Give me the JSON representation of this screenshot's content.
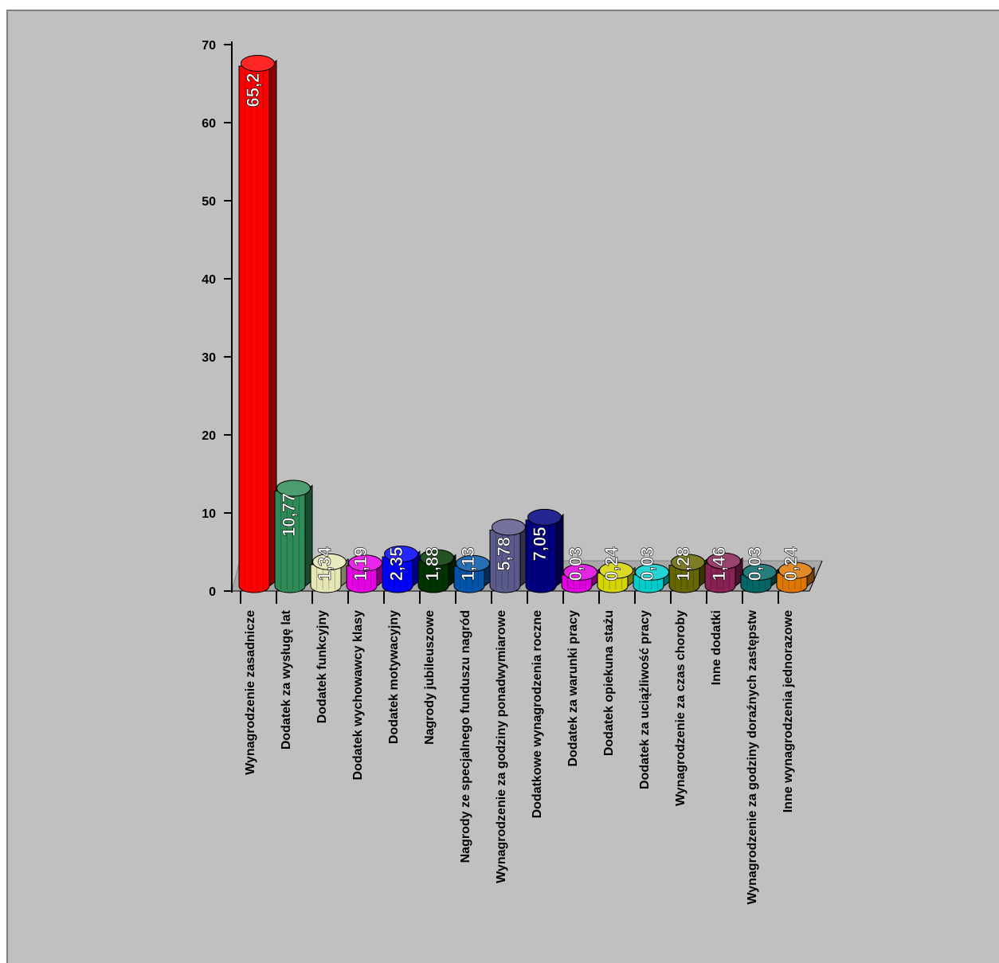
{
  "chart_data": {
    "type": "bar",
    "title": "",
    "xlabel": "",
    "ylabel": "",
    "ylim": [
      0,
      70
    ],
    "yticks": [
      0,
      10,
      20,
      30,
      40,
      50,
      60,
      70
    ],
    "categories": [
      "Wynagrodzenie zasadnicze",
      "Dodatek za wysługę lat",
      "Dodatek funkcyjny",
      "Dodatek wychowawcy klasy",
      "Dodatek motywacyjny",
      "Nagrody jubileuszowe",
      "Nagrody ze specjalnego funduszu nagród",
      "Wynagrodzenie za godziny ponadwymiarowe",
      "Dodatkowe wynagrodzenia roczne",
      "Dodatek za warunki pracy",
      "Dodatek opiekuna stażu",
      "Dodatek za uciążliwość pracy",
      "Wynagrodzenie za czas choroby",
      "Inne dodatki",
      "Wynagrodzenie za godziny doraźnych zastępstw",
      "Inne wynagrodzenia jednorazowe"
    ],
    "values": [
      65.2,
      10.77,
      1.34,
      1.19,
      2.35,
      1.88,
      1.13,
      5.78,
      7.05,
      0.03,
      0.24,
      0.03,
      1.28,
      1.46,
      0.03,
      0.24
    ],
    "data_labels": [
      "65,2",
      "10,77",
      "1,34",
      "1,19",
      "2,35",
      "1,88",
      "1,13",
      "5,78",
      "7,05",
      "0,03",
      "0,24",
      "0,03",
      "1,28",
      "1,46",
      "0,03",
      "0,24"
    ],
    "colors": [
      "#ff0000",
      "#2e8b57",
      "#e6e6b4",
      "#e600e6",
      "#0000ff",
      "#003300",
      "#0055aa",
      "#5a5a8c",
      "#000080",
      "#dd00dd",
      "#d4d400",
      "#00cccc",
      "#666600",
      "#882255",
      "#006666",
      "#dd7700"
    ],
    "grid": false,
    "legend": "none",
    "style": "3d-cylinder"
  }
}
